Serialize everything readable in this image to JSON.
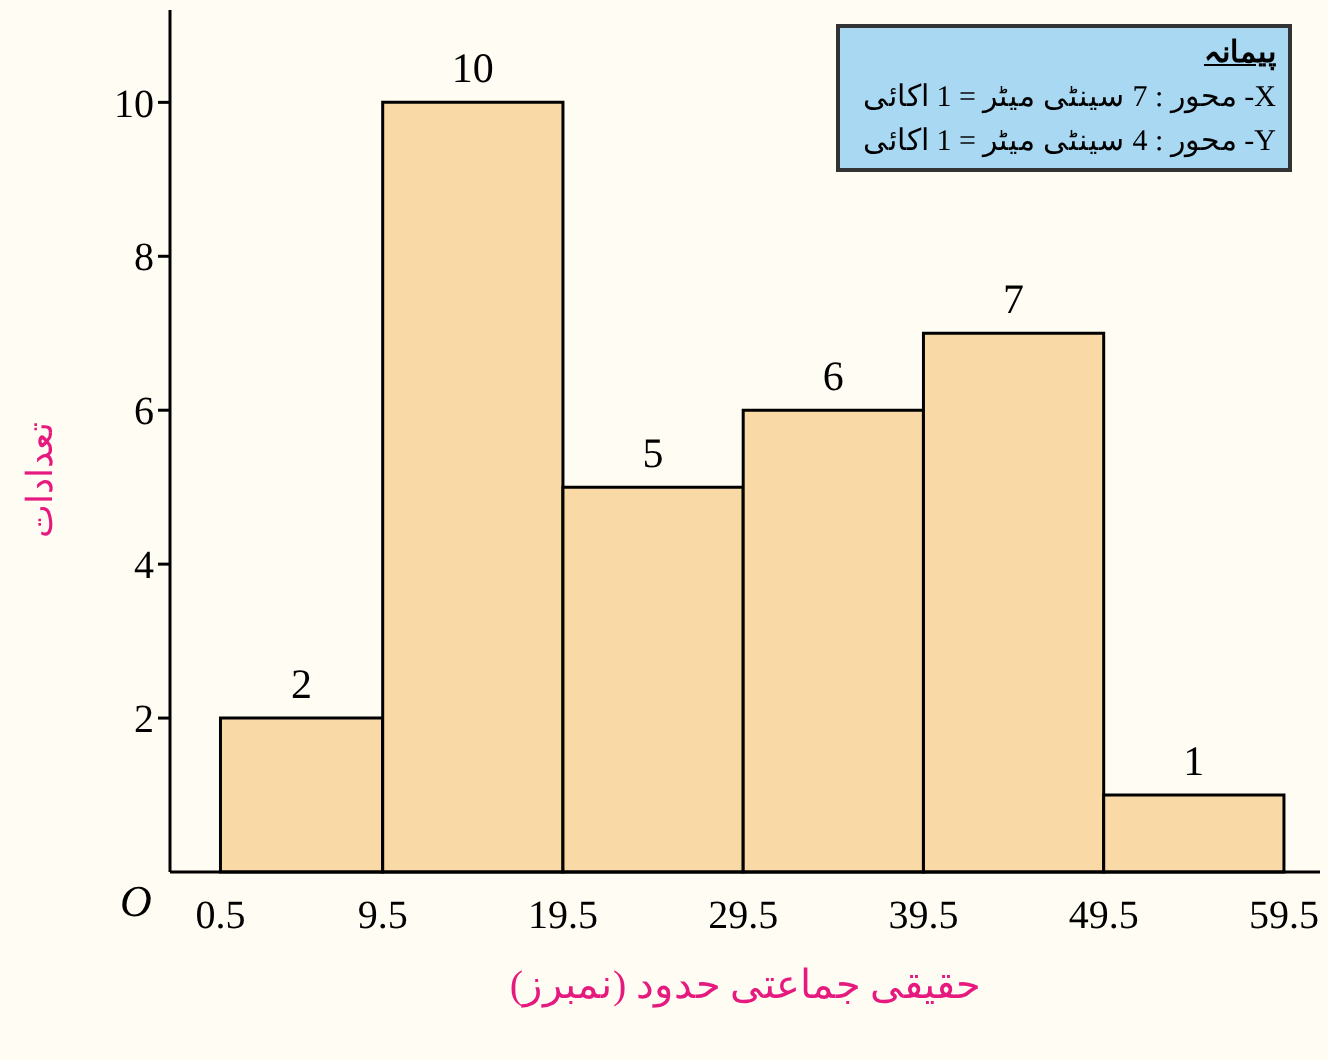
{
  "chart_data": {
    "type": "histogram",
    "xlabel": "حقیقی جماعتی حدود (نمبرز)",
    "ylabel": "تعدادات",
    "bins": [
      0.5,
      9.5,
      19.5,
      29.5,
      39.5,
      49.5,
      59.5
    ],
    "values": [
      2,
      10,
      5,
      6,
      7,
      1
    ],
    "color": "#f9d9a6",
    "data_labels": true,
    "xlim": [
      -2.3,
      61.5
    ],
    "xticks": [
      0.5,
      9.5,
      19.5,
      29.5,
      39.5,
      49.5,
      59.5
    ],
    "ylim": [
      0,
      11.2
    ],
    "yticks": [
      2,
      4,
      6,
      8,
      10
    ],
    "grid": false,
    "annotations": [
      "O",
      "پیمانہ",
      "X- محور : 7 سینٹی میٹر = 1 اکائی",
      "Y- محور : 4 سینٹی میٹر = 1 اکائی"
    ]
  }
}
